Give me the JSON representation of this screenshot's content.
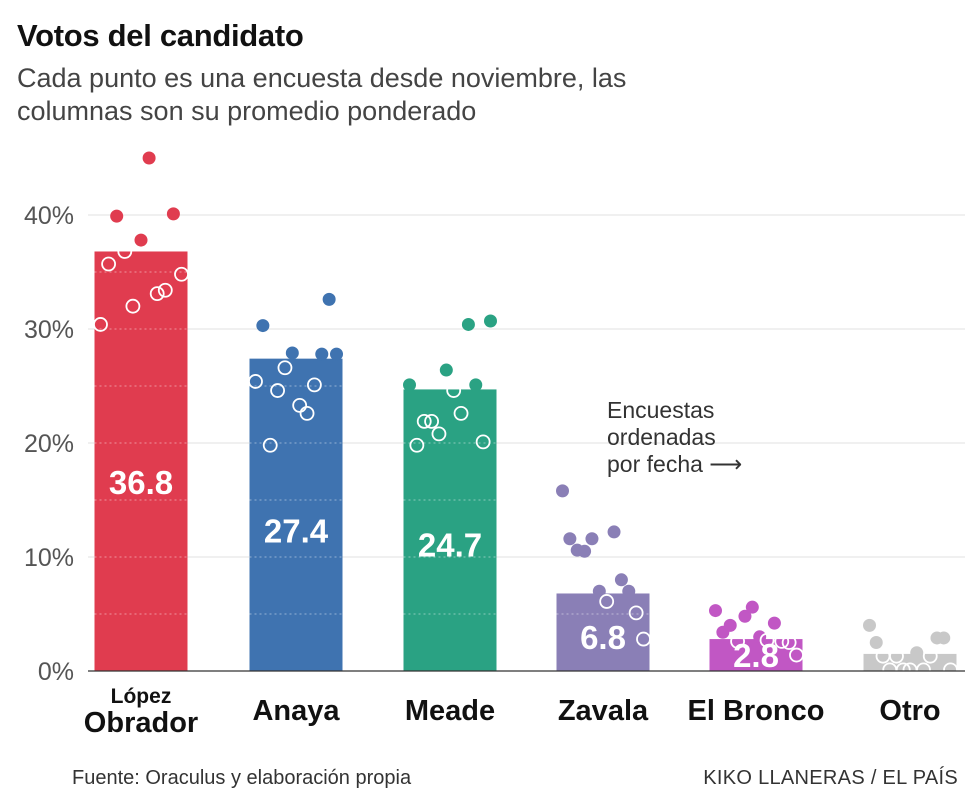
{
  "title": "Votos del candidato",
  "subtitle": "Cada punto es una encuesta desde noviembre, las columnas son su promedio ponderado",
  "source": "Fuente: Oraculus y elaboración propia",
  "credit": "KIKO LLANERAS / EL PAÍS",
  "chart_data": {
    "type": "bar",
    "ylim": [
      0,
      45
    ],
    "yticks": [
      "0%",
      "10%",
      "20%",
      "30%",
      "40%"
    ],
    "ytick_values": [
      0,
      10,
      20,
      30,
      40
    ],
    "annotation": "Encuestas ordenadas por fecha ⟶",
    "categories": [
      {
        "label_lines": [
          "López",
          "Obrador"
        ],
        "value": 36.8,
        "value_label": "36.8",
        "color": "#e03c4f",
        "polls": [
          30.4,
          35.7,
          39.9,
          36.8,
          32.0,
          37.8,
          45.0,
          33.1,
          33.4,
          40.1,
          34.8
        ]
      },
      {
        "label_lines": [
          "Anaya"
        ],
        "value": 27.4,
        "value_label": "27.4",
        "color": "#3f73b0",
        "polls": [
          25.4,
          30.3,
          19.8,
          24.6,
          26.6,
          27.9,
          23.3,
          22.6,
          25.1,
          27.8,
          32.6,
          27.8
        ]
      },
      {
        "label_lines": [
          "Meade"
        ],
        "value": 24.7,
        "value_label": "24.7",
        "color": "#2aa283",
        "polls": [
          25.1,
          19.8,
          21.9,
          21.9,
          20.8,
          26.4,
          24.6,
          22.6,
          30.4,
          25.1,
          20.1,
          30.7
        ]
      },
      {
        "label_lines": [
          "Zavala"
        ],
        "value": 6.8,
        "value_label": "6.8",
        "color": "#8a7fb6",
        "polls": [
          15.8,
          11.6,
          10.6,
          10.5,
          11.6,
          7.0,
          6.1,
          12.2,
          8.0,
          7.0,
          5.1,
          2.8
        ]
      },
      {
        "label_lines": [
          "El Bronco"
        ],
        "value": 2.8,
        "value_label": "2.8",
        "color": "#c157c4",
        "polls": [
          5.3,
          3.4,
          4.0,
          2.6,
          4.8,
          5.6,
          3.0,
          2.7,
          4.2,
          2.6,
          2.5,
          1.4
        ]
      },
      {
        "label_lines": [
          "Otro"
        ],
        "value": 1.5,
        "value_label": "",
        "color": "#c8c8c8",
        "polls": [
          4.0,
          2.5,
          1.3,
          0.1,
          1.3,
          0.1,
          0.1,
          1.6,
          0.1,
          1.3,
          2.9,
          2.9,
          0.1
        ]
      }
    ]
  }
}
